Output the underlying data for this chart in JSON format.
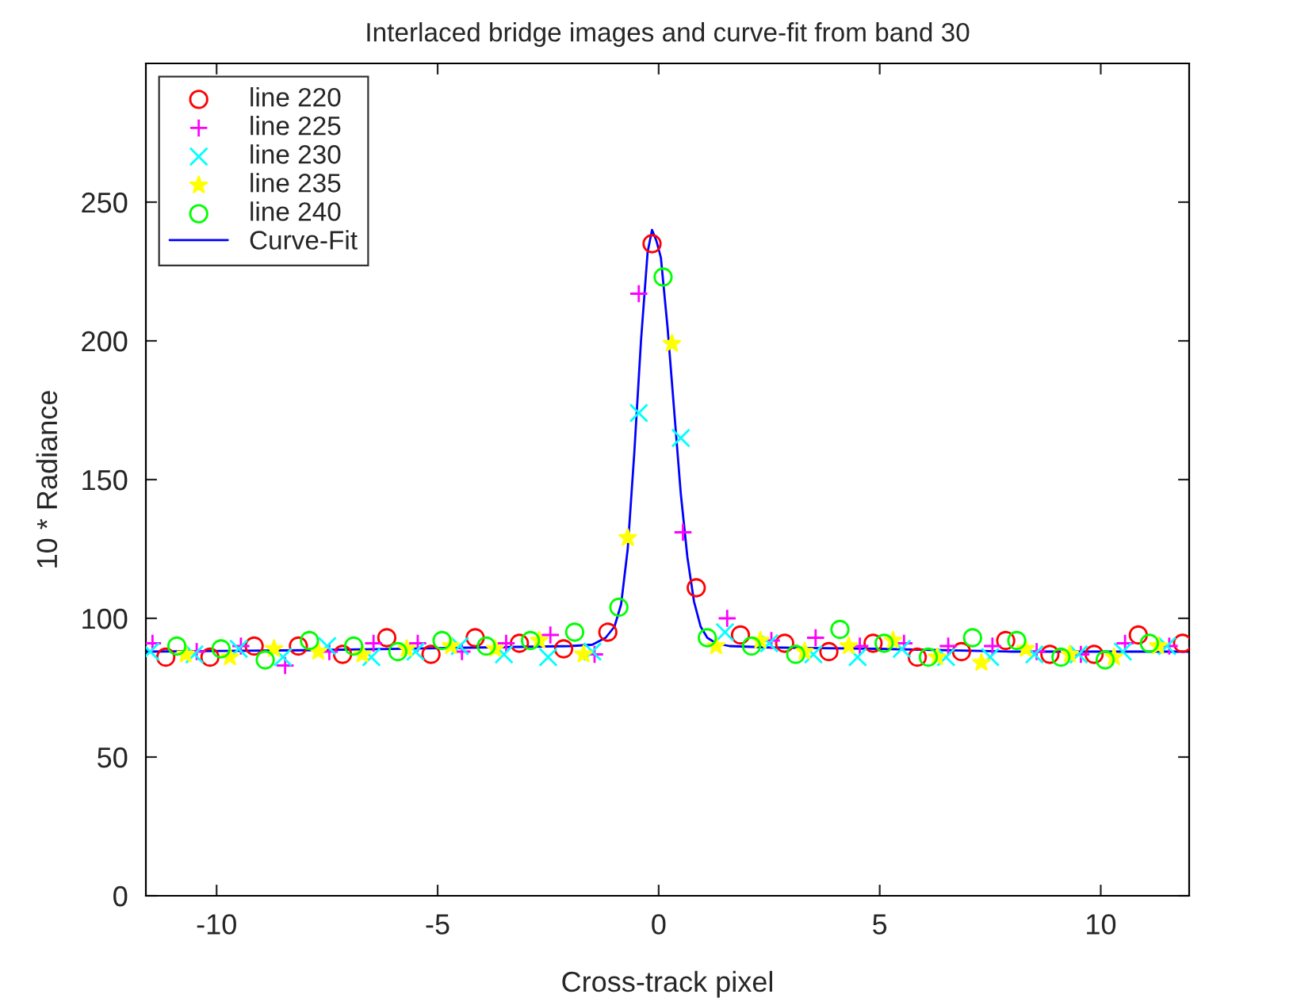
{
  "chart_data": {
    "type": "scatter",
    "title": "Interlaced bridge images and curve-fit from band 30",
    "xlabel": "Cross-track pixel",
    "ylabel": "10 * Radiance",
    "xlim": [
      -11.6,
      12
    ],
    "xticks": [
      -10,
      -5,
      0,
      5,
      10
    ],
    "ylim": [
      0,
      300
    ],
    "yticks": [
      0,
      50,
      100,
      150,
      200,
      250
    ],
    "grid": false,
    "legend": "top left",
    "series": [
      {
        "name": "line 220",
        "color": "#ff0000",
        "marker": "circle",
        "x": [
          -11.15,
          -10.15,
          -9.15,
          -8.15,
          -7.15,
          -6.15,
          -5.15,
          -4.15,
          -3.15,
          -2.15,
          -1.15,
          -0.15,
          0.85,
          1.85,
          2.85,
          3.85,
          4.85,
          5.85,
          6.85,
          7.85,
          8.85,
          9.85,
          10.85,
          11.85
        ],
        "values": [
          86,
          86,
          90,
          90,
          87,
          93,
          87,
          93,
          91,
          89,
          95,
          235,
          111,
          94,
          91,
          88,
          91,
          86,
          88,
          92,
          87,
          87,
          94,
          91
        ]
      },
      {
        "name": "line 225",
        "color": "#ff00ff",
        "marker": "cross",
        "x": [
          -11.45,
          -10.45,
          -9.45,
          -8.45,
          -7.45,
          -6.45,
          -5.45,
          -4.45,
          -3.45,
          -2.45,
          -1.45,
          -0.45,
          0.55,
          1.55,
          2.55,
          3.55,
          4.55,
          5.55,
          6.55,
          7.55,
          8.55,
          9.55,
          10.55,
          11.55
        ],
        "values": [
          91,
          88,
          90,
          83,
          88,
          91,
          91,
          88,
          91,
          94,
          87,
          217,
          131,
          100,
          92,
          93,
          90,
          91,
          90,
          90,
          88,
          87,
          91,
          90
        ]
      },
      {
        "name": "line 230",
        "color": "#00ffff",
        "marker": "x",
        "x": [
          -11.5,
          -10.5,
          -9.5,
          -8.5,
          -7.5,
          -6.5,
          -5.5,
          -4.5,
          -3.5,
          -2.5,
          -1.5,
          -0.45,
          0.5,
          1.5,
          2.5,
          3.5,
          4.5,
          5.5,
          6.5,
          7.5,
          8.5,
          9.5,
          10.5,
          11.5
        ],
        "values": [
          88,
          87,
          89,
          86,
          90,
          86,
          88,
          90,
          87,
          86,
          88,
          174,
          165,
          95,
          91,
          87,
          86,
          89,
          86,
          86,
          87,
          87,
          88,
          90
        ]
      },
      {
        "name": "line 235",
        "color": "#ffff00",
        "marker": "star",
        "x": [
          -10.7,
          -9.7,
          -8.7,
          -7.7,
          -6.7,
          -5.7,
          -4.7,
          -3.7,
          -2.7,
          -1.7,
          -0.7,
          0.3,
          1.3,
          2.3,
          3.3,
          4.3,
          5.3,
          6.3,
          7.3,
          8.3,
          9.3,
          10.3,
          11.3
        ],
        "values": [
          87,
          86,
          89,
          88,
          87,
          89,
          90,
          89,
          92,
          87,
          129,
          199,
          90,
          92,
          88,
          90,
          92,
          86,
          84,
          89,
          87,
          86,
          90
        ]
      },
      {
        "name": "line 240",
        "color": "#00ff00",
        "marker": "circle",
        "x": [
          -10.9,
          -9.9,
          -8.9,
          -7.9,
          -6.9,
          -5.9,
          -4.9,
          -3.9,
          -2.9,
          -1.9,
          -0.9,
          0.1,
          1.1,
          2.1,
          3.1,
          4.1,
          5.1,
          6.1,
          7.1,
          8.1,
          9.1,
          10.1,
          11.1
        ],
        "values": [
          90,
          89,
          85,
          92,
          90,
          88,
          92,
          90,
          92,
          95,
          104,
          223,
          93,
          90,
          87,
          96,
          91,
          86,
          93,
          92,
          86,
          85,
          91
        ]
      },
      {
        "name": "Curve-Fit",
        "type": "line",
        "color": "#0000ff",
        "marker": "none",
        "x": [
          -11.6,
          -8,
          -4,
          -2,
          -1.5,
          -1.2,
          -1.0,
          -0.85,
          -0.7,
          -0.55,
          -0.4,
          -0.25,
          -0.15,
          -0.05,
          0.05,
          0.2,
          0.35,
          0.5,
          0.65,
          0.8,
          0.95,
          1.1,
          1.3,
          1.6,
          2.5,
          5,
          8,
          12
        ],
        "values": [
          88,
          88.5,
          89.5,
          90,
          90.5,
          93,
          97,
          105,
          125,
          160,
          200,
          232,
          240,
          236,
          230,
          205,
          175,
          145,
          122,
          106,
          97,
          93,
          91,
          90,
          89.5,
          89,
          88,
          88
        ]
      }
    ]
  }
}
